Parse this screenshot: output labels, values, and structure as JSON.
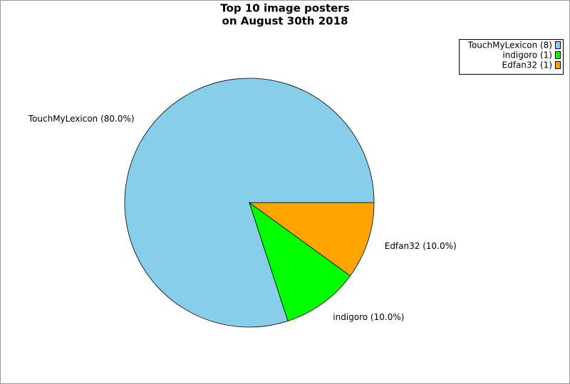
{
  "chart_data": {
    "type": "pie",
    "title": [
      "Top 10 image posters",
      "on August 30th 2018"
    ],
    "values": [
      80,
      10,
      10
    ],
    "value_labels": [
      "TouchMyLexicon (80.0%)",
      "indigoro (10.0%)",
      "Edfan32 (10.0%)"
    ],
    "counts": [
      8,
      1,
      1
    ],
    "count_labels": [
      "TouchMyLexicon (8)",
      "indigoro (1)",
      "Edfan32 (1)"
    ],
    "colors": [
      "#87ceeb",
      "#00ff00",
      "#ffa500"
    ],
    "legend": "upper right"
  }
}
